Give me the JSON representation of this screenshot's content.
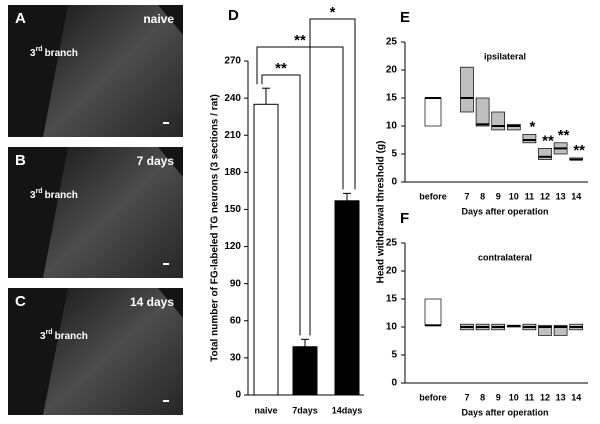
{
  "micrographs": [
    {
      "label": "A",
      "condition": "naive",
      "branch": {
        "ordinal": "3",
        "suffix": "rd",
        "word": "branch"
      }
    },
    {
      "label": "B",
      "condition": "7 days",
      "branch": {
        "ordinal": "3",
        "suffix": "rd",
        "word": "branch"
      }
    },
    {
      "label": "C",
      "condition": "14 days",
      "branch": {
        "ordinal": "3",
        "suffix": "rd",
        "word": "branch"
      }
    }
  ],
  "chart_data": [
    {
      "type": "bar",
      "label": "D",
      "y_label": "Total number of FG-labeled TG neurons (3 sections / rat)",
      "categories": [
        "naive",
        "7days",
        "14days"
      ],
      "values": [
        235,
        39,
        157
      ],
      "errors": [
        13,
        6,
        6
      ],
      "colors": [
        "#ffffff",
        "#000000",
        "#000000"
      ],
      "ylim": [
        0,
        270
      ],
      "yticks": [
        0,
        30,
        60,
        90,
        120,
        150,
        180,
        210,
        240,
        270
      ],
      "significance": [
        "**",
        "**",
        "*"
      ]
    },
    {
      "type": "range",
      "label": "E",
      "title": "ipsilateral",
      "y_label": "Head withdrawal threshold (g)",
      "x_label": "Days after operation",
      "categories": [
        "before",
        "7",
        "8",
        "9",
        "10",
        "11",
        "12",
        "13",
        "14"
      ],
      "low": [
        10,
        12.5,
        10,
        9.3,
        9.3,
        7,
        4,
        5,
        4
      ],
      "high": [
        15,
        20.5,
        15,
        12.5,
        10.3,
        8.5,
        6,
        7,
        4.3
      ],
      "median": [
        15,
        15,
        10.3,
        10,
        10,
        7.5,
        4.5,
        6,
        4
      ],
      "colors": [
        "#ffffff",
        "#bfbfbf",
        "#bfbfbf",
        "#bfbfbf",
        "#bfbfbf",
        "#bfbfbf",
        "#bfbfbf",
        "#bfbfbf",
        "#bfbfbf"
      ],
      "significance": [
        null,
        null,
        null,
        null,
        null,
        "*",
        "**",
        "**",
        "**"
      ],
      "ylim": [
        0,
        25
      ],
      "yticks": [
        0,
        5,
        10,
        15,
        20,
        25
      ]
    },
    {
      "type": "range",
      "label": "F",
      "title": "contralateral",
      "x_label": "Days after operation",
      "categories": [
        "before",
        "7",
        "8",
        "9",
        "10",
        "11",
        "12",
        "13",
        "14"
      ],
      "low": [
        10.3,
        9.5,
        9.5,
        9.5,
        10,
        9.5,
        8.5,
        8.5,
        9.5
      ],
      "high": [
        15,
        10.5,
        10.5,
        10.5,
        10.3,
        10.5,
        10.3,
        10.3,
        10.5
      ],
      "median": [
        10.3,
        10,
        10,
        10,
        10.2,
        10,
        10,
        10,
        10
      ],
      "colors": [
        "#ffffff",
        "#bfbfbf",
        "#bfbfbf",
        "#bfbfbf",
        "#bfbfbf",
        "#bfbfbf",
        "#bfbfbf",
        "#bfbfbf",
        "#bfbfbf"
      ],
      "ylim": [
        0,
        25
      ],
      "yticks": [
        0,
        5,
        10,
        15,
        20,
        25
      ]
    }
  ]
}
